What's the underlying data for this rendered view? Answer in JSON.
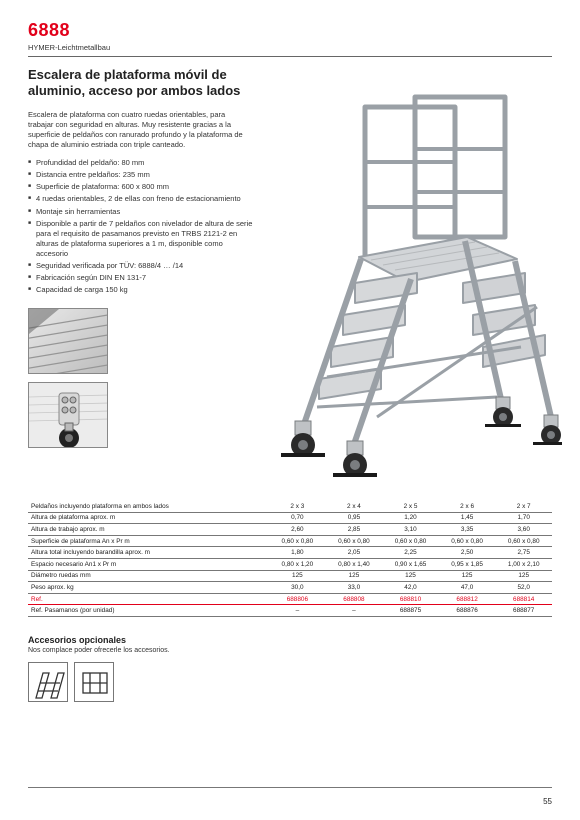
{
  "header": {
    "number": "6888",
    "sub": "HYMER-Leichtmetallbau"
  },
  "title": "Escalera de plataforma móvil de aluminio, acceso por ambos lados",
  "desc": "Escalera de plataforma con cuatro ruedas orientables, para trabajar con seguridad en alturas. Muy resistente gracias a la superficie de peldaños con ranurado profundo y la plataforma de chapa de aluminio estriada con triple canteado.",
  "bullets": [
    "Profundidad del peldaño: 80 mm",
    "Distancia entre peldaños: 235 mm",
    "Superficie de plataforma: 600 x 800 mm",
    "4 ruedas orientables, 2 de ellas con freno de estacionamiento",
    "Montaje sin herramientas",
    "Disponible a partir de 7 peldaños con nivelador de altura de serie para el requisito de pasamanos previsto en TRBS 2121-2 en alturas de plataforma superiores a 1 m, disponible como accesorio",
    "Seguridad verificada por TÜV: 6888/4 … /14",
    "Fabricación según DIN EN 131-7",
    "Capacidad de carga 150 kg"
  ],
  "spec": {
    "rows": [
      {
        "label": "Peldaños incluyendo plataforma en ambos lados",
        "vals": [
          "2 x 3",
          "2 x 4",
          "2 x 5",
          "2 x 6",
          "2 x 7"
        ]
      },
      {
        "label": "Altura de plataforma aprox. m",
        "vals": [
          "0,70",
          "0,95",
          "1,20",
          "1,45",
          "1,70"
        ]
      },
      {
        "label": "Altura de trabajo aprox. m",
        "vals": [
          "2,60",
          "2,85",
          "3,10",
          "3,35",
          "3,60"
        ]
      },
      {
        "label": "Superficie de plataforma An x Pr m",
        "vals": [
          "0,60 x 0,80",
          "0,60 x 0,80",
          "0,60 x 0,80",
          "0,60 x 0,80",
          "0,60 x 0,80"
        ]
      },
      {
        "label": "Altura total incluyendo barandilla aprox. m",
        "vals": [
          "1,80",
          "2,05",
          "2,25",
          "2,50",
          "2,75"
        ]
      },
      {
        "label": "Espacio necesario An1 x Pr m",
        "vals": [
          "0,80 x 1,20",
          "0,80 x 1,40",
          "0,90 x 1,65",
          "0,95 x 1,85",
          "1,00 x 2,10"
        ]
      },
      {
        "label": "Diámetro ruedas mm",
        "vals": [
          "125",
          "125",
          "125",
          "125",
          "125"
        ]
      },
      {
        "label": "Peso aprox. kg",
        "vals": [
          "30,0",
          "33,0",
          "42,0",
          "47,0",
          "52,0"
        ]
      },
      {
        "label": "Ref.",
        "vals": [
          "688806",
          "688808",
          "688810",
          "688812",
          "688814"
        ],
        "accent": true
      },
      {
        "label": "Ref. Pasamanos (por unidad)",
        "vals": [
          "–",
          "–",
          "688875",
          "688876",
          "688877"
        ]
      }
    ]
  },
  "accessories": {
    "title": "Accesorios opcionales",
    "invite": "Nos complace poder ofrecerle los accesorios."
  },
  "pageNum": "55",
  "colors": {
    "accent": "#e2001a",
    "ink": "#333333",
    "border": "#777777",
    "bg": "#ffffff"
  }
}
